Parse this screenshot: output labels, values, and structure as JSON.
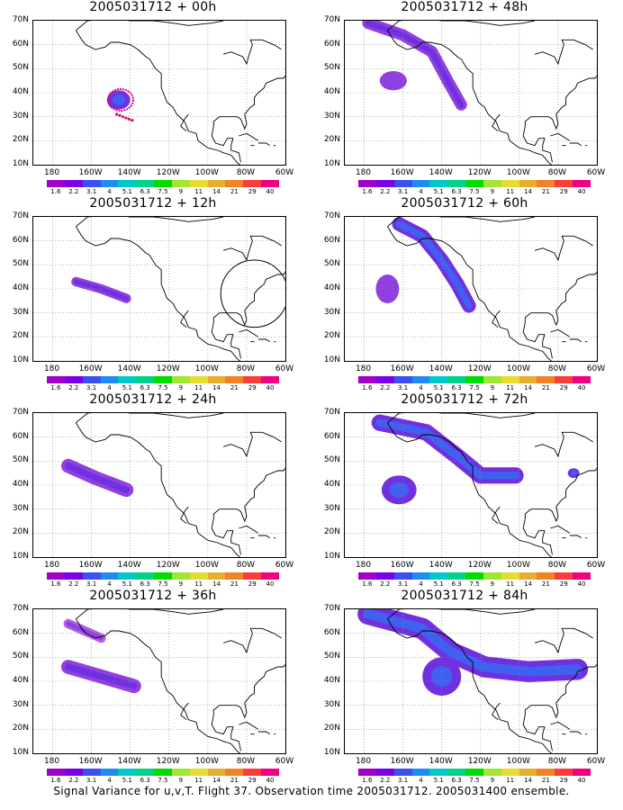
{
  "panels": [
    {
      "title": "2005031712 + 00h",
      "lead": "00h",
      "features": [
        {
          "kind": "blob",
          "lon": -146,
          "lat": 37,
          "rx": 6,
          "ry": 4,
          "level": 2
        },
        {
          "kind": "dots",
          "lon": -147,
          "lat": 31,
          "level": "magenta"
        }
      ]
    },
    {
      "title": "2005031712 + 48h",
      "lead": "48h",
      "features": [
        {
          "kind": "band",
          "points": [
            [
              -178,
              69
            ],
            [
              -160,
              64
            ],
            [
              -145,
              57
            ],
            [
              -137,
              45
            ],
            [
              -130,
              35
            ]
          ],
          "w": 5,
          "level": 2
        },
        {
          "kind": "blob",
          "lon": -165,
          "lat": 45,
          "rx": 7,
          "ry": 4,
          "level": 1
        }
      ]
    },
    {
      "title": "2005031712 + 12h",
      "lead": "12h",
      "features": [
        {
          "kind": "band",
          "points": [
            [
              -168,
              43
            ],
            [
              -155,
              40
            ],
            [
              -142,
              36
            ]
          ],
          "w": 4,
          "level": 2
        },
        {
          "kind": "circle",
          "lon": -76,
          "lat": 38,
          "r": 7
        }
      ]
    },
    {
      "title": "2005031712 + 60h",
      "lead": "60h",
      "features": [
        {
          "kind": "band",
          "points": [
            [
              -162,
              67
            ],
            [
              -150,
              62
            ],
            [
              -140,
              52
            ],
            [
              -132,
              42
            ],
            [
              -126,
              33
            ]
          ],
          "w": 6,
          "level": 3
        },
        {
          "kind": "blob",
          "lon": -168,
          "lat": 40,
          "rx": 6,
          "ry": 6,
          "level": 1
        }
      ]
    },
    {
      "title": "2005031712 + 24h",
      "lead": "24h",
      "features": [
        {
          "kind": "band",
          "points": [
            [
              -172,
              48
            ],
            [
              -158,
              43
            ],
            [
              -142,
              38
            ]
          ],
          "w": 6,
          "level": 2
        }
      ]
    },
    {
      "title": "2005031712 + 72h",
      "lead": "72h",
      "features": [
        {
          "kind": "band",
          "points": [
            [
              -172,
              66
            ],
            [
              -148,
              62
            ],
            [
              -132,
              52
            ],
            [
              -120,
              44
            ],
            [
              -102,
              44
            ]
          ],
          "w": 7,
          "level": 3
        },
        {
          "kind": "blob",
          "lon": -162,
          "lat": 38,
          "rx": 9,
          "ry": 6,
          "level": 2
        },
        {
          "kind": "blob",
          "lon": -72,
          "lat": 45,
          "rx": 3,
          "ry": 2,
          "level": 2
        }
      ]
    },
    {
      "title": "2005031712 + 36h",
      "lead": "36h",
      "features": [
        {
          "kind": "band",
          "points": [
            [
              -172,
              64
            ],
            [
              -155,
              58
            ]
          ],
          "w": 4,
          "level": 1
        },
        {
          "kind": "band",
          "points": [
            [
              -172,
              46
            ],
            [
              -155,
              42
            ],
            [
              -138,
              38
            ]
          ],
          "w": 6,
          "level": 2
        }
      ]
    },
    {
      "title": "2005031712 + 84h",
      "lead": "84h",
      "features": [
        {
          "kind": "band",
          "points": [
            [
              -178,
              68
            ],
            [
              -150,
              62
            ],
            [
              -135,
              52
            ],
            [
              -118,
              46
            ],
            [
              -95,
              44
            ],
            [
              -70,
              45
            ]
          ],
          "w": 9,
          "level": 3
        },
        {
          "kind": "blob",
          "lon": -140,
          "lat": 42,
          "rx": 10,
          "ry": 8,
          "level": 2
        }
      ]
    }
  ],
  "map": {
    "lat_ticks": [
      "70N",
      "60N",
      "50N",
      "40N",
      "30N",
      "20N",
      "10N"
    ],
    "lon_ticks": [
      "180",
      "160W",
      "140W",
      "120W",
      "100W",
      "80W",
      "60W"
    ]
  },
  "colorbar": {
    "labels": [
      "1.6",
      "2.2",
      "3.1",
      "4",
      "5.1",
      "6.3",
      "7.5",
      "9",
      "11",
      "14",
      "21",
      "29",
      "40"
    ],
    "colors": [
      "#a000c8",
      "#7800e6",
      "#3c50f0",
      "#1e8cf0",
      "#00c8c8",
      "#00d28c",
      "#00dc00",
      "#a0e632",
      "#e6dc32",
      "#e6af2d",
      "#f08228",
      "#fa3c3c",
      "#f00082"
    ]
  },
  "caption": "Signal Variance for u,v,T. Flight 37. Observation time 2005031712. 2005031400 ensemble."
}
